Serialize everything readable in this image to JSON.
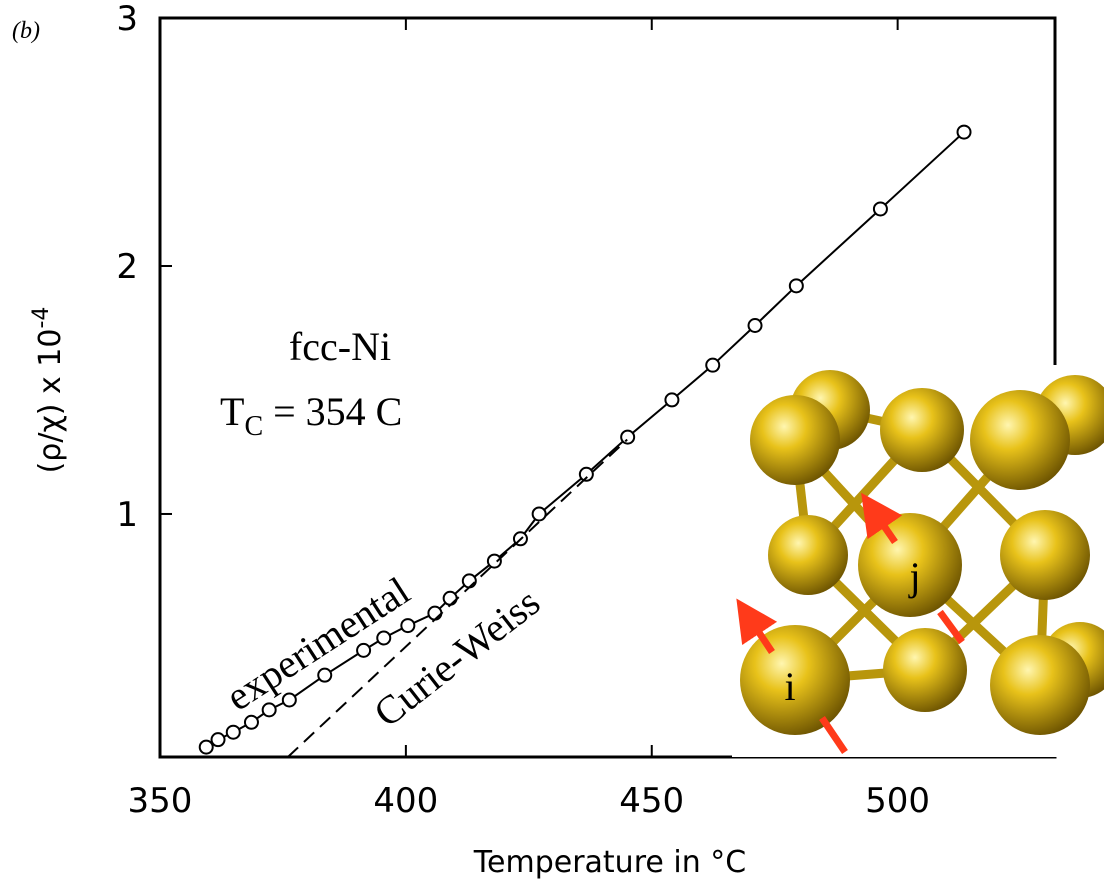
{
  "chart_data": {
    "type": "line",
    "panel_label": "(b)",
    "x_label": "Temperature in °C",
    "y_label": {
      "main": "(ρ/χ) x 10",
      "power": "-4"
    },
    "xlim": [
      350,
      532
    ],
    "ylim": [
      0.02,
      3
    ],
    "xticks": [
      350,
      400,
      450,
      500
    ],
    "yticks": [
      1,
      2,
      3
    ],
    "series": [
      {
        "name": "experimental",
        "color": "#000000",
        "marker": "circle",
        "dashed": false,
        "x": [
          359.4,
          361.8,
          364.9,
          368.6,
          372.2,
          376.3,
          383.5,
          391.4,
          395.5,
          400.4,
          405.9,
          409,
          412.9,
          418,
          423.3,
          427.1,
          436.7,
          445.1,
          454.1,
          462.4,
          471,
          479.4,
          496.5,
          513.5
        ],
        "values": [
          0.06,
          0.09,
          0.12,
          0.16,
          0.21,
          0.25,
          0.35,
          0.45,
          0.5,
          0.55,
          0.6,
          0.66,
          0.73,
          0.81,
          0.9,
          1.0,
          1.16,
          1.31,
          1.46,
          1.6,
          1.76,
          1.92,
          2.23,
          2.54
        ]
      },
      {
        "name": "Curie-Weiss",
        "color": "#000000",
        "marker": "none",
        "dashed": true,
        "x": [
          376,
          445
        ],
        "values": [
          0.02,
          1.3
        ]
      }
    ],
    "annotations": {
      "material": "fcc-Ni",
      "tc_main": "T",
      "tc_sub": "C",
      "tc_rest": " = 354 C"
    },
    "inset": {
      "labels": [
        "i",
        "j"
      ]
    }
  }
}
